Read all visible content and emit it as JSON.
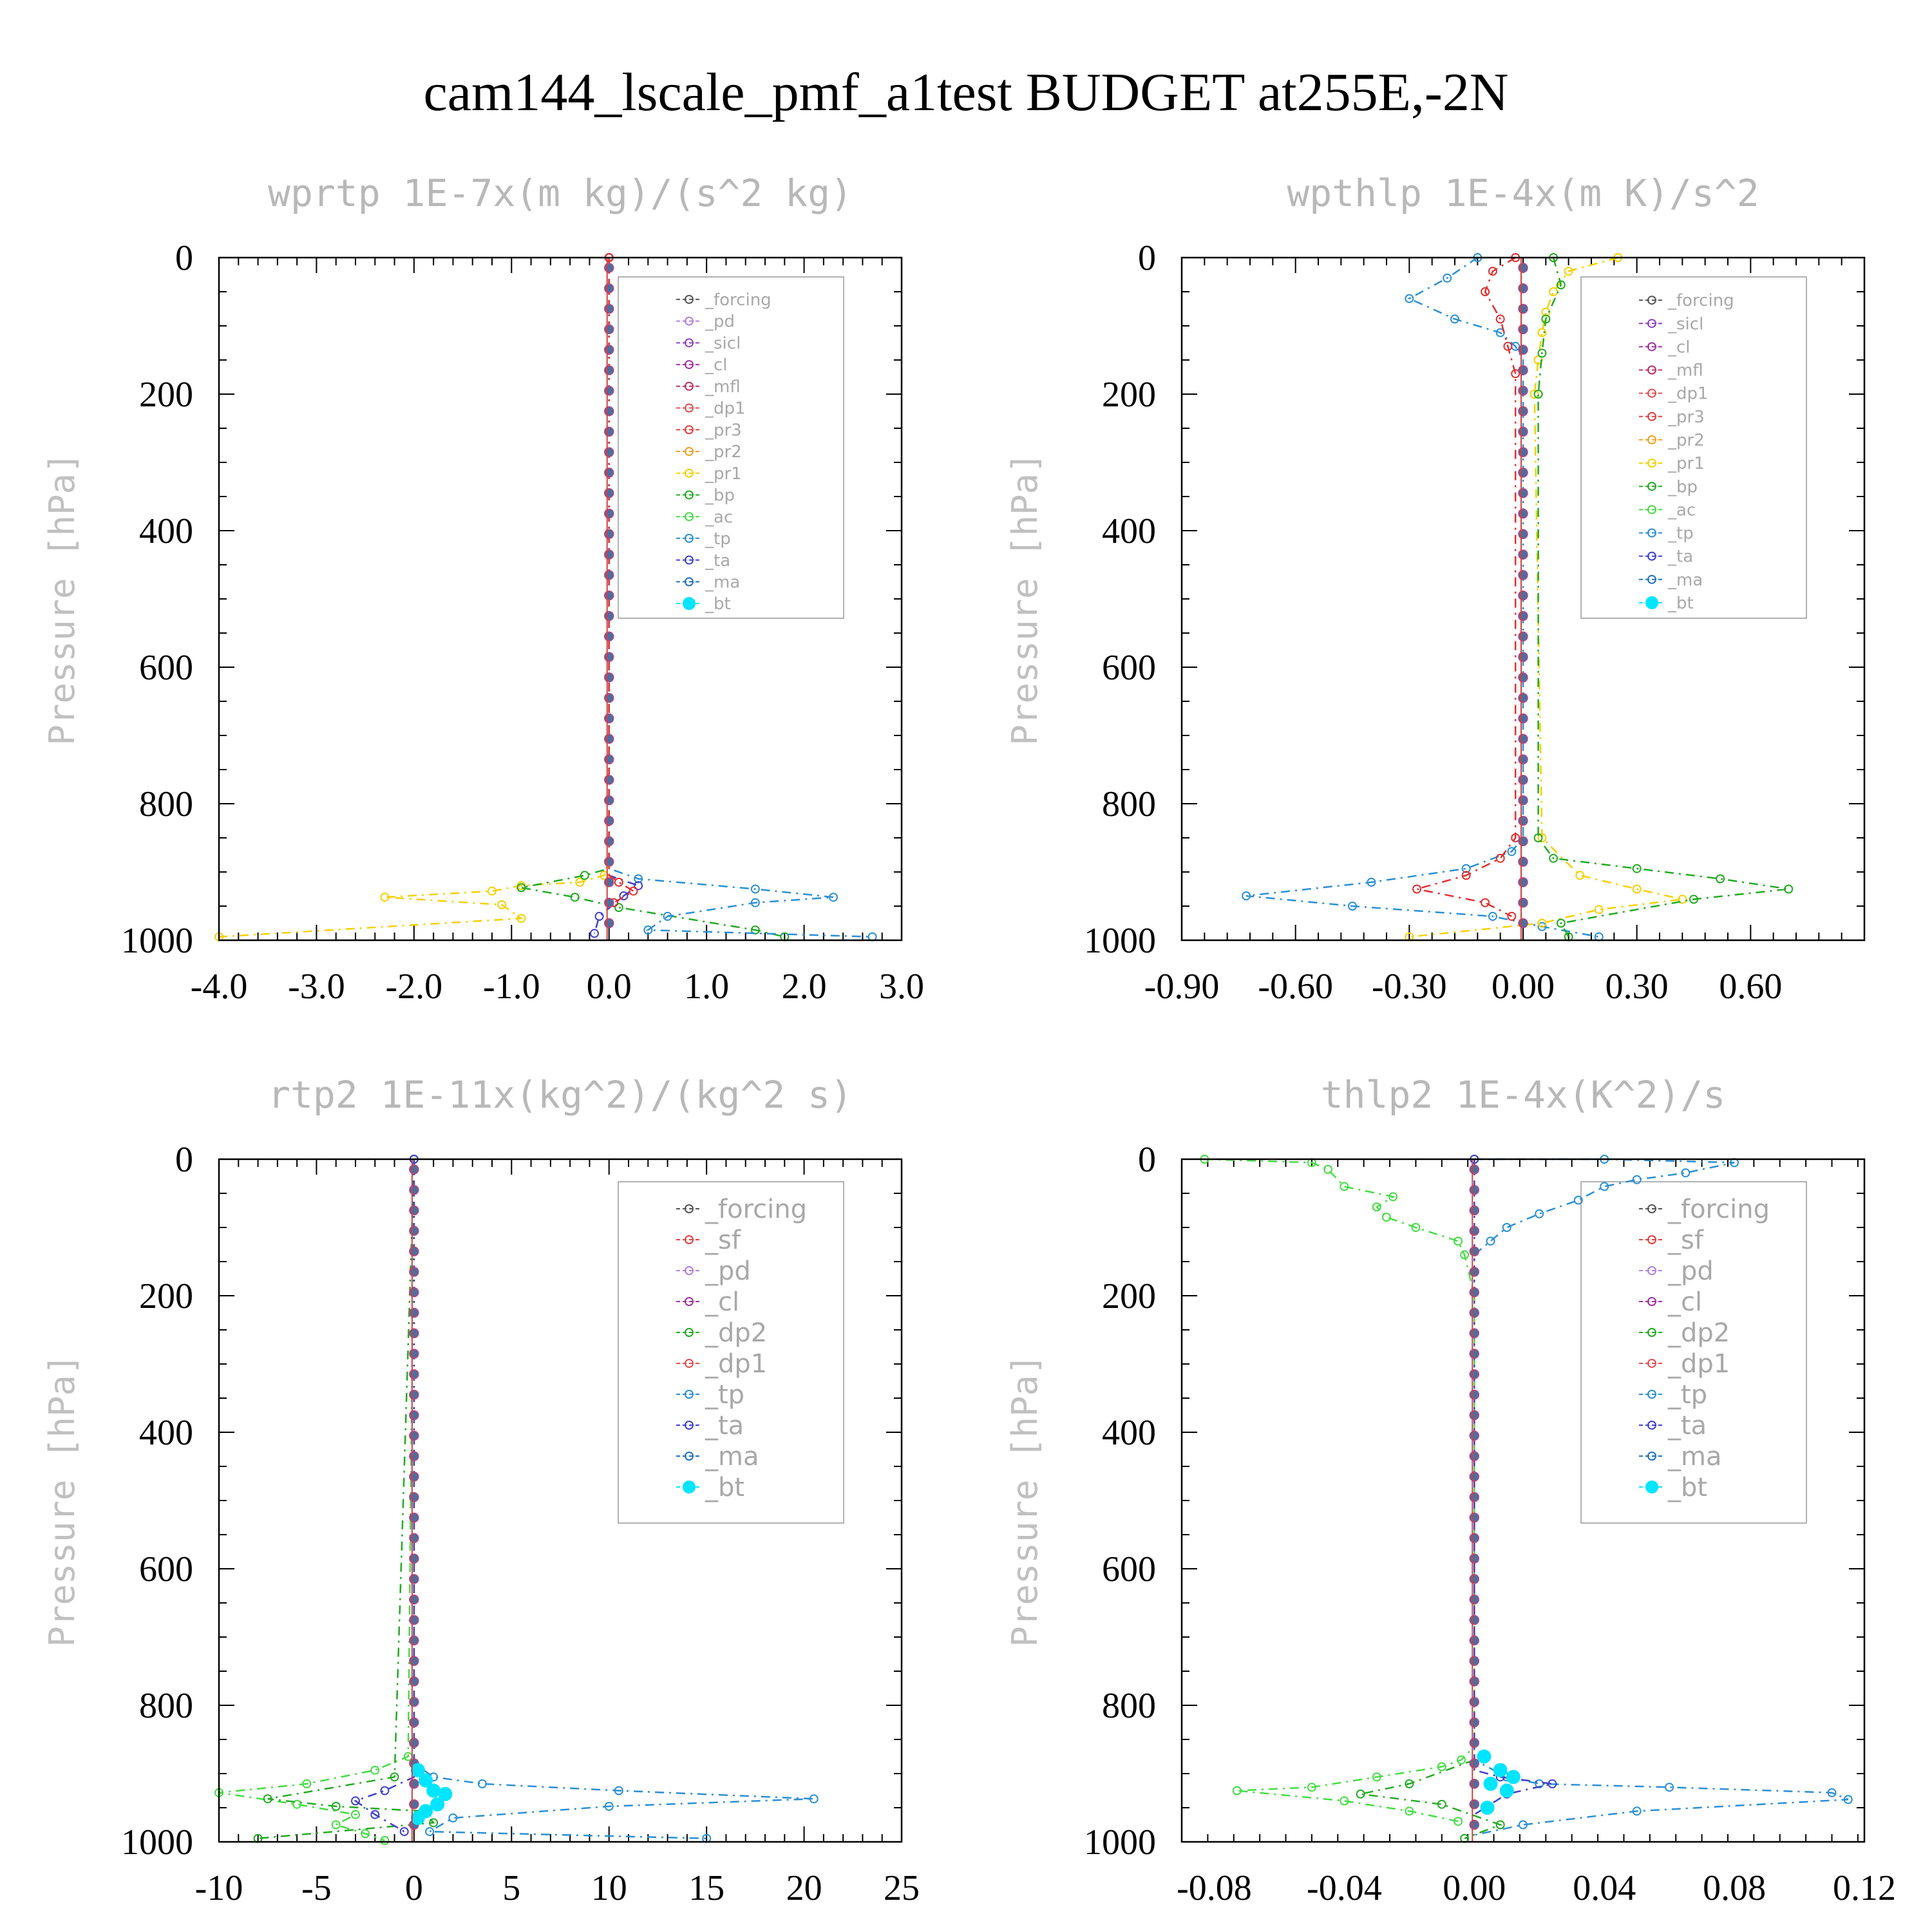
{
  "title": "cam144_lscale_pmf_a1test  BUDGET at255E,-2N",
  "chart_data": [
    {
      "type": "line",
      "title": "wprtp  1E-7x(m kg)/(s^2 kg)",
      "ylabel": "Pressure [hPa]",
      "xlim": [
        -4.0,
        3.0
      ],
      "xticks": [
        "-4.0",
        "-3.0",
        "-2.0",
        "-1.0",
        "0.0",
        "1.0",
        "2.0",
        "3.0"
      ],
      "ylim": [
        0,
        1000
      ],
      "yticks": [
        "0",
        "200",
        "400",
        "600",
        "800",
        "1000"
      ],
      "y_inverted": true,
      "legend": [
        "_forcing",
        "_pd",
        "_sicl",
        "_cl",
        "_mfl",
        "_dp1",
        "_pr3",
        "_pr2",
        "_pr1",
        "_bp",
        "_ac",
        "_tp",
        "_ta",
        "_ma",
        "_bt"
      ],
      "series": [
        {
          "name": "_pr1",
          "color": "#f5d000",
          "x": [
            0,
            0,
            -0.05,
            -0.3,
            -0.9,
            -1.2,
            -2.3,
            -1.1,
            -0.9,
            -4.0
          ],
          "y": [
            0,
            880,
            905,
            915,
            920,
            928,
            937,
            948,
            968,
            995
          ]
        },
        {
          "name": "_bp",
          "color": "#22aa22",
          "x": [
            0,
            0,
            -0.25,
            -0.9,
            -0.35,
            0.1,
            1.5,
            1.8
          ],
          "y": [
            0,
            895,
            905,
            923,
            937,
            952,
            985,
            995
          ]
        },
        {
          "name": "_tp",
          "color": "#2a8fd4",
          "x": [
            0,
            0,
            0.3,
            1.5,
            2.3,
            1.5,
            0.6,
            0.4,
            2.7
          ],
          "y": [
            0,
            895,
            910,
            925,
            937,
            945,
            965,
            985,
            995
          ]
        },
        {
          "name": "_ta",
          "color": "#4040cc",
          "x": [
            0,
            0,
            0.3,
            0.15,
            -0.1,
            -0.15
          ],
          "y": [
            0,
            905,
            920,
            935,
            965,
            990
          ]
        },
        {
          "name": "_dp1",
          "color": "#e03030",
          "x": [
            0,
            0,
            0.1,
            0.25,
            0.05
          ],
          "y": [
            0,
            905,
            915,
            928,
            945
          ]
        },
        {
          "name": "_bt",
          "color": "#00e5ff",
          "x": [
            0,
            0
          ],
          "y": [
            0,
            1000
          ]
        }
      ]
    },
    {
      "type": "line",
      "title": "wpthlp  1E-4x(m K)/s^2",
      "ylabel": "Pressure [hPa]",
      "xlim": [
        -0.9,
        0.9
      ],
      "xticks": [
        "-0.90",
        "-0.60",
        "-0.30",
        "0.00",
        "0.30",
        "0.60"
      ],
      "ylim": [
        0,
        1000
      ],
      "yticks": [
        "0",
        "200",
        "400",
        "600",
        "800",
        "1000"
      ],
      "y_inverted": true,
      "legend": [
        "_forcing",
        "_sicl",
        "_cl",
        "_mfl",
        "_dp1",
        "_pr3",
        "_pr2",
        "_pr1",
        "_bp",
        "_ac",
        "_tp",
        "_ta",
        "_ma",
        "_bt"
      ],
      "series": [
        {
          "name": "_tp",
          "color": "#2a8fd4",
          "x": [
            -0.12,
            -0.2,
            -0.3,
            -0.18,
            -0.06,
            -0.02,
            0,
            0,
            -0.03,
            -0.15,
            -0.4,
            -0.73,
            -0.45,
            -0.08,
            0.05,
            0.2
          ],
          "y": [
            0,
            30,
            60,
            90,
            110,
            130,
            150,
            850,
            870,
            895,
            915,
            935,
            950,
            965,
            980,
            995
          ]
        },
        {
          "name": "_pr3",
          "color": "#e03030",
          "x": [
            -0.02,
            -0.08,
            -0.1,
            -0.06,
            -0.04,
            -0.02,
            -0.02,
            -0.06,
            -0.15,
            -0.28,
            -0.1,
            -0.03
          ],
          "y": [
            0,
            20,
            50,
            90,
            130,
            170,
            850,
            880,
            905,
            925,
            945,
            965
          ]
        },
        {
          "name": "_pr1",
          "color": "#f5d000",
          "x": [
            0.25,
            0.12,
            0.08,
            0.06,
            0.05,
            0.04,
            0.03,
            0.05,
            0.15,
            0.3,
            0.42,
            0.2,
            0.05,
            -0.3
          ],
          "y": [
            0,
            20,
            50,
            80,
            110,
            150,
            200,
            850,
            905,
            925,
            940,
            955,
            975,
            995
          ]
        },
        {
          "name": "_bp",
          "color": "#22aa22",
          "x": [
            0.08,
            0.1,
            0.06,
            0.05,
            0.04,
            0.04,
            0.08,
            0.3,
            0.52,
            0.7,
            0.45,
            0.1,
            0.12
          ],
          "y": [
            0,
            40,
            90,
            140,
            200,
            850,
            880,
            895,
            910,
            925,
            940,
            975,
            995
          ]
        },
        {
          "name": "_bt",
          "color": "#00e5ff",
          "x": [
            0,
            0
          ],
          "y": [
            0,
            1000
          ]
        }
      ]
    },
    {
      "type": "line",
      "title": "rtp2  1E-11x(kg^2)/(kg^2 s)",
      "ylabel": "Pressure [hPa]",
      "xlim": [
        -10,
        25
      ],
      "xticks": [
        "-10",
        "-5",
        "0",
        "5",
        "10",
        "15",
        "20",
        "25"
      ],
      "ylim": [
        0,
        1000
      ],
      "yticks": [
        "0",
        "200",
        "400",
        "600",
        "800",
        "1000"
      ],
      "y_inverted": true,
      "legend": [
        "_forcing",
        "_sf",
        "_pd",
        "_cl",
        "_dp2",
        "_dp1",
        "_tp",
        "_ta",
        "_ma",
        "_bt"
      ],
      "series": [
        {
          "name": "_dp1",
          "color": "#44dd44",
          "x": [
            0,
            -0.3,
            -2,
            -5.5,
            -10,
            -6,
            -3,
            -4,
            -2.5,
            -1.5
          ],
          "y": [
            0,
            875,
            895,
            915,
            928,
            945,
            960,
            975,
            988,
            998
          ]
        },
        {
          "name": "_dp2",
          "color": "#22aa22",
          "x": [
            0,
            -1,
            -7.5,
            -4,
            0.5,
            1,
            -8
          ],
          "y": [
            0,
            905,
            937,
            948,
            955,
            972,
            995
          ]
        },
        {
          "name": "_tp",
          "color": "#2a8fd4",
          "x": [
            0,
            0,
            1,
            3.5,
            10.5,
            20.5,
            10,
            2,
            0.8,
            15
          ],
          "y": [
            0,
            885,
            905,
            915,
            925,
            937,
            948,
            965,
            985,
            995
          ]
        },
        {
          "name": "_ta",
          "color": "#4040cc",
          "x": [
            0,
            0,
            -1.5,
            -3,
            -2,
            -0.5
          ],
          "y": [
            0,
            905,
            925,
            940,
            960,
            985
          ]
        },
        {
          "name": "_bt",
          "color": "#00e5ff",
          "x": [
            0,
            0,
            0.2,
            0.6,
            1,
            1.6,
            1.2,
            0.6,
            0.2,
            0
          ],
          "y": [
            0,
            880,
            895,
            910,
            925,
            930,
            945,
            955,
            965,
            1000
          ]
        }
      ]
    },
    {
      "type": "line",
      "title": "thlp2  1E-4x(K^2)/s",
      "ylabel": "Pressure [hPa]",
      "xlim": [
        -0.09,
        0.12
      ],
      "xticks": [
        "-0.08",
        "-0.04",
        "0.00",
        "0.04",
        "0.08",
        "0.12"
      ],
      "ylim": [
        0,
        1000
      ],
      "yticks": [
        "0",
        "200",
        "400",
        "600",
        "800",
        "1000"
      ],
      "y_inverted": true,
      "legend": [
        "_forcing",
        "_sf",
        "_pd",
        "_cl",
        "_dp2",
        "_dp1",
        "_tp",
        "_ta",
        "_ma",
        "_bt"
      ],
      "series": [
        {
          "name": "_dp1",
          "color": "#44dd44",
          "x": [
            -0.083,
            -0.05,
            -0.045,
            -0.04,
            -0.025,
            -0.03,
            -0.027,
            -0.018,
            -0.005,
            -0.003,
            0,
            0,
            -0.004,
            -0.01,
            -0.03,
            -0.05,
            -0.073,
            -0.04,
            -0.02,
            -0.005
          ],
          "y": [
            0,
            5,
            15,
            40,
            55,
            70,
            85,
            100,
            120,
            140,
            200,
            860,
            880,
            890,
            905,
            920,
            925,
            940,
            955,
            970
          ]
        },
        {
          "name": "_dp2",
          "color": "#22aa22",
          "x": [
            0,
            -0.02,
            -0.035,
            -0.01,
            0.008,
            -0.003
          ],
          "y": [
            880,
            915,
            930,
            945,
            975,
            995
          ]
        },
        {
          "name": "_tp",
          "color": "#2a8fd4",
          "x": [
            0,
            0.04,
            0.08,
            0.065,
            0.05,
            0.04,
            0.032,
            0.02,
            0.01,
            0.005,
            0,
            0,
            0.01,
            0.02,
            0.06,
            0.11,
            0.115,
            0.05,
            0.015,
            0
          ],
          "y": [
            0,
            0,
            5,
            20,
            30,
            40,
            60,
            80,
            100,
            120,
            140,
            880,
            905,
            915,
            920,
            928,
            938,
            955,
            975,
            990
          ]
        },
        {
          "name": "_ta",
          "color": "#4040cc",
          "x": [
            0,
            0,
            0.008,
            0.024,
            0.01,
            0
          ],
          "y": [
            0,
            895,
            905,
            915,
            930,
            960
          ]
        },
        {
          "name": "_bt",
          "color": "#00e5ff",
          "x": [
            0,
            0,
            0.003,
            0.008,
            0.012,
            0.005,
            0.01,
            0.004,
            0
          ],
          "y": [
            0,
            860,
            875,
            895,
            905,
            915,
            925,
            950,
            1000
          ]
        }
      ]
    }
  ]
}
